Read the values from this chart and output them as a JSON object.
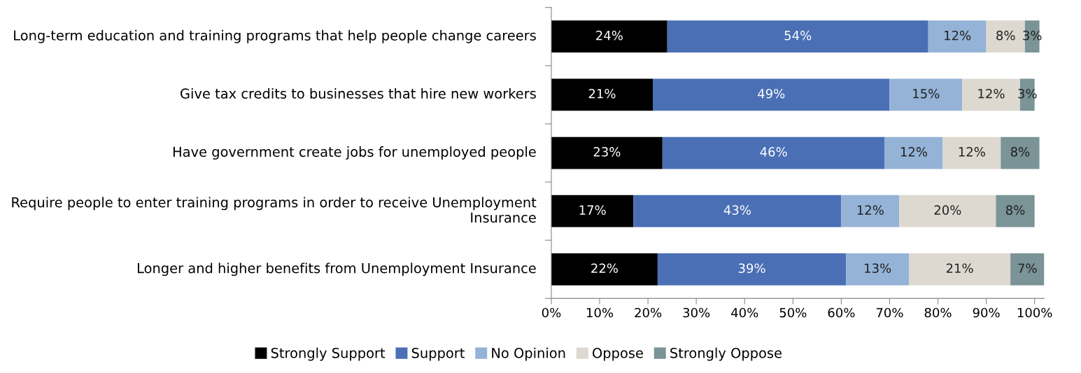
{
  "chart_data": {
    "type": "bar",
    "orientation": "horizontal",
    "stacked": true,
    "grid": false,
    "legend": "bottom",
    "categories": [
      "Long-term education and training programs that help people change careers",
      "Give tax credits to businesses that hire new workers",
      "Have government create jobs for unemployed people",
      "Require people to enter training programs in order to receive Unemployment Insurance",
      "Longer and higher benefits from Unemployment Insurance"
    ],
    "series": [
      {
        "name": "Strongly Support",
        "color": "#000000",
        "values": [
          24,
          21,
          23,
          17,
          22
        ],
        "value_labels": [
          "24%",
          "21%",
          "23%",
          "17%",
          "22%"
        ]
      },
      {
        "name": "Support",
        "color": "#4a6fb5",
        "values": [
          54,
          49,
          46,
          43,
          39
        ],
        "value_labels": [
          "54%",
          "49%",
          "46%",
          "43%",
          "39%"
        ]
      },
      {
        "name": "No Opinion",
        "color": "#95b3d7",
        "values": [
          12,
          15,
          12,
          12,
          13
        ],
        "value_labels": [
          "12%",
          "15%",
          "12%",
          "12%",
          "13%"
        ]
      },
      {
        "name": "Oppose",
        "color": "#ddd9d0",
        "values": [
          8,
          12,
          12,
          20,
          21
        ],
        "value_labels": [
          "8%",
          "12%",
          "12%",
          "20%",
          "21%"
        ]
      },
      {
        "name": "Strongly Oppose",
        "color": "#7a9497",
        "values": [
          3,
          3,
          8,
          8,
          7
        ],
        "value_labels": [
          "3%",
          "3%",
          "8%",
          "8%",
          "7%"
        ]
      }
    ],
    "xlim": [
      0,
      102
    ],
    "xticks": [
      {
        "value": 0,
        "label": "0%"
      },
      {
        "value": 10,
        "label": "10%"
      },
      {
        "value": 20,
        "label": "20%"
      },
      {
        "value": 30,
        "label": "30%"
      },
      {
        "value": 40,
        "label": "40%"
      },
      {
        "value": 50,
        "label": "50%"
      },
      {
        "value": 60,
        "label": "60%"
      },
      {
        "value": 70,
        "label": "70%"
      },
      {
        "value": 80,
        "label": "80%"
      },
      {
        "value": 90,
        "label": "90%"
      },
      {
        "value": 100,
        "label": "100%"
      }
    ]
  }
}
